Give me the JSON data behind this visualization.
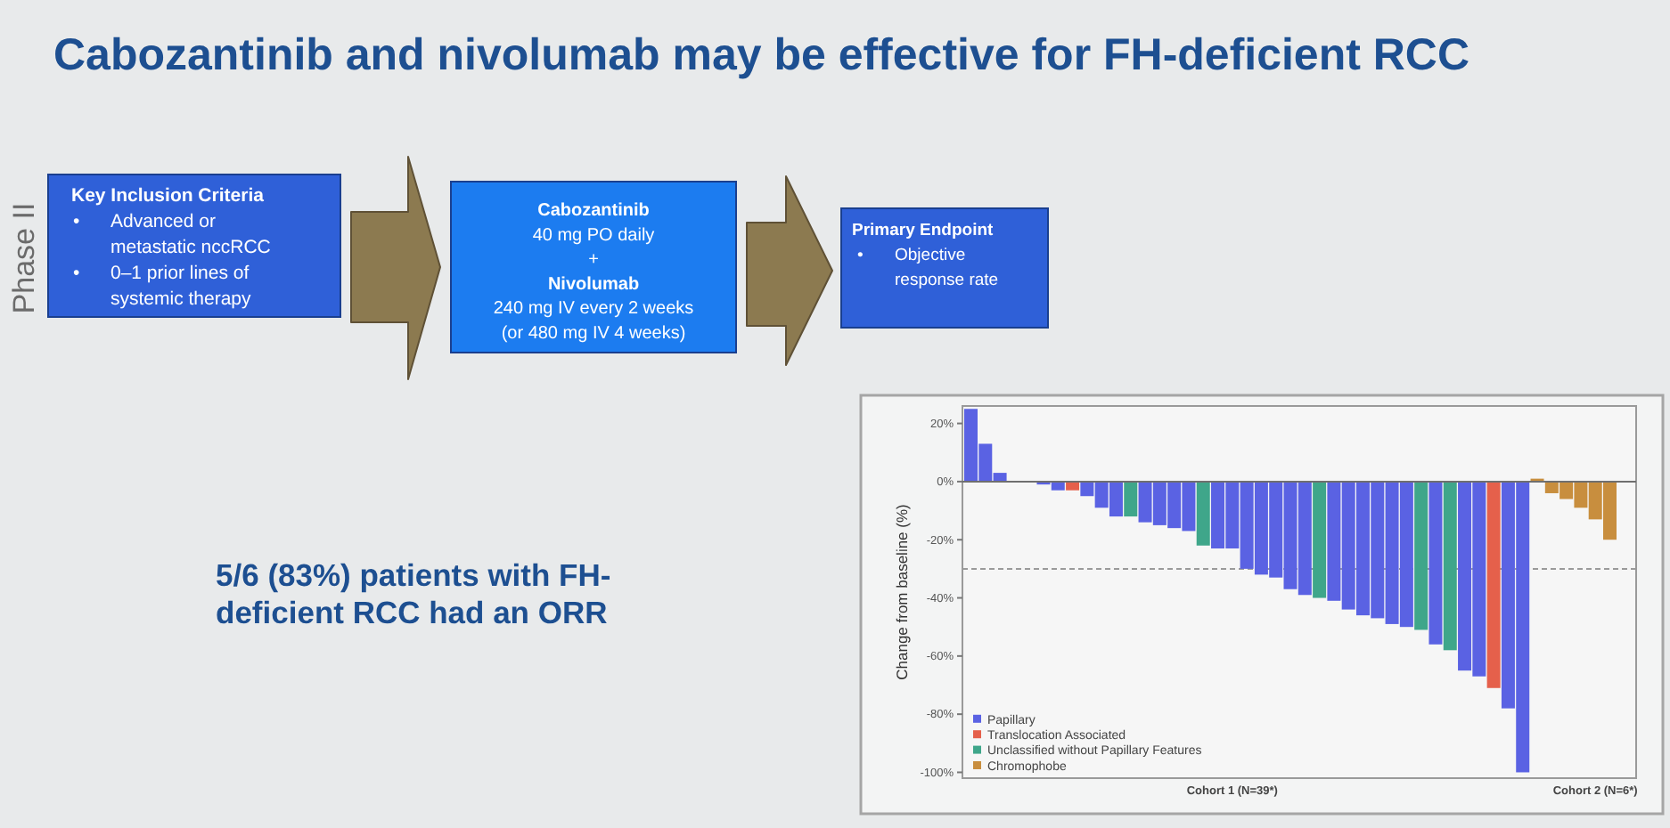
{
  "chart_data": {
    "type": "bar",
    "title": "Cabozantinib and nivolumab may be effective for FH-deficient RCC",
    "ylabel": "Change from baseline (%)",
    "categories": [
      null,
      null,
      null,
      null,
      null,
      null,
      null,
      null,
      null,
      null,
      null,
      null,
      null,
      null,
      null,
      null,
      null,
      null,
      "Cohort 1 (N=39*)",
      null,
      null,
      null,
      null,
      null,
      null,
      null,
      null,
      null,
      null,
      null,
      null,
      null,
      null,
      null,
      null,
      null,
      null,
      null,
      null,
      null,
      null,
      null,
      null,
      "Cohort 2 (N=6*)",
      null
    ],
    "series": [
      {
        "name": "Papillary",
        "color": "#5a62e3",
        "values": [
          25,
          13,
          3,
          null,
          null,
          -1,
          -3,
          null,
          -5,
          -9,
          -12,
          null,
          -14,
          -15,
          -16,
          -17,
          null,
          -23,
          -23,
          -30,
          -32,
          -33,
          -37,
          -39,
          null,
          -41,
          -44,
          -46,
          -47,
          -49,
          -50,
          null,
          -56,
          null,
          -65,
          -67,
          null,
          -78,
          -100,
          null,
          null,
          null,
          null,
          null,
          null
        ]
      },
      {
        "name": "Translocation Associated",
        "color": "#e5604b",
        "values": [
          null,
          null,
          null,
          null,
          null,
          null,
          null,
          -3,
          null,
          null,
          null,
          null,
          null,
          null,
          null,
          null,
          null,
          null,
          null,
          null,
          null,
          null,
          null,
          null,
          null,
          null,
          null,
          null,
          null,
          null,
          null,
          null,
          null,
          null,
          null,
          null,
          -71,
          null,
          null,
          null,
          null,
          null,
          null,
          null,
          null
        ]
      },
      {
        "name": "Unclassified without Papillary Features",
        "color": "#3fa68a",
        "values": [
          null,
          null,
          null,
          null,
          null,
          null,
          null,
          null,
          null,
          null,
          null,
          -12,
          null,
          null,
          null,
          null,
          -22,
          null,
          null,
          null,
          null,
          null,
          null,
          null,
          -40,
          null,
          null,
          null,
          null,
          null,
          null,
          -51,
          null,
          -58,
          null,
          null,
          null,
          null,
          null,
          null,
          null,
          null,
          null,
          null,
          null
        ]
      },
      {
        "name": "Chromophobe",
        "color": "#c88e3e",
        "values": [
          null,
          null,
          null,
          null,
          null,
          null,
          null,
          null,
          null,
          null,
          null,
          null,
          null,
          null,
          null,
          null,
          null,
          null,
          null,
          null,
          null,
          null,
          null,
          null,
          null,
          null,
          null,
          null,
          null,
          null,
          null,
          null,
          null,
          null,
          null,
          null,
          null,
          null,
          null,
          1,
          -4,
          -6,
          -9,
          -13,
          -20
        ]
      }
    ],
    "stacked": true,
    "ylim": [
      -102,
      26
    ],
    "yticks": [
      {
        "value": 20,
        "label": "20%"
      },
      {
        "value": 0,
        "label": "0%"
      },
      {
        "value": -20,
        "label": "-20%"
      },
      {
        "value": -40,
        "label": "-40%"
      },
      {
        "value": -60,
        "label": "-60%"
      },
      {
        "value": -80,
        "label": "-80%"
      },
      {
        "value": -100,
        "label": "-100%"
      }
    ],
    "ref_lines": [
      {
        "axis": "y",
        "value": -30,
        "line_style": "dashed",
        "color": "#9a9a9a"
      }
    ],
    "legend": "bottom left",
    "annotations": [
      "Phase II",
      "Key Inclusion Criteria\n• Advanced or\nmetastatic nccRCC\n• 0–1 prior lines of\nsystemic therapy",
      "Cabozantinib\n40 mg PO daily\n+\nNivolumab\n240 mg IV every 2 weeks\n(or 480 mg IV 4 weeks)",
      "Primary Endpoint\n• Objective\nresponse rate",
      "5/6 (83%) patients with FH-\ndeficient RCC had an ORR"
    ]
  }
}
